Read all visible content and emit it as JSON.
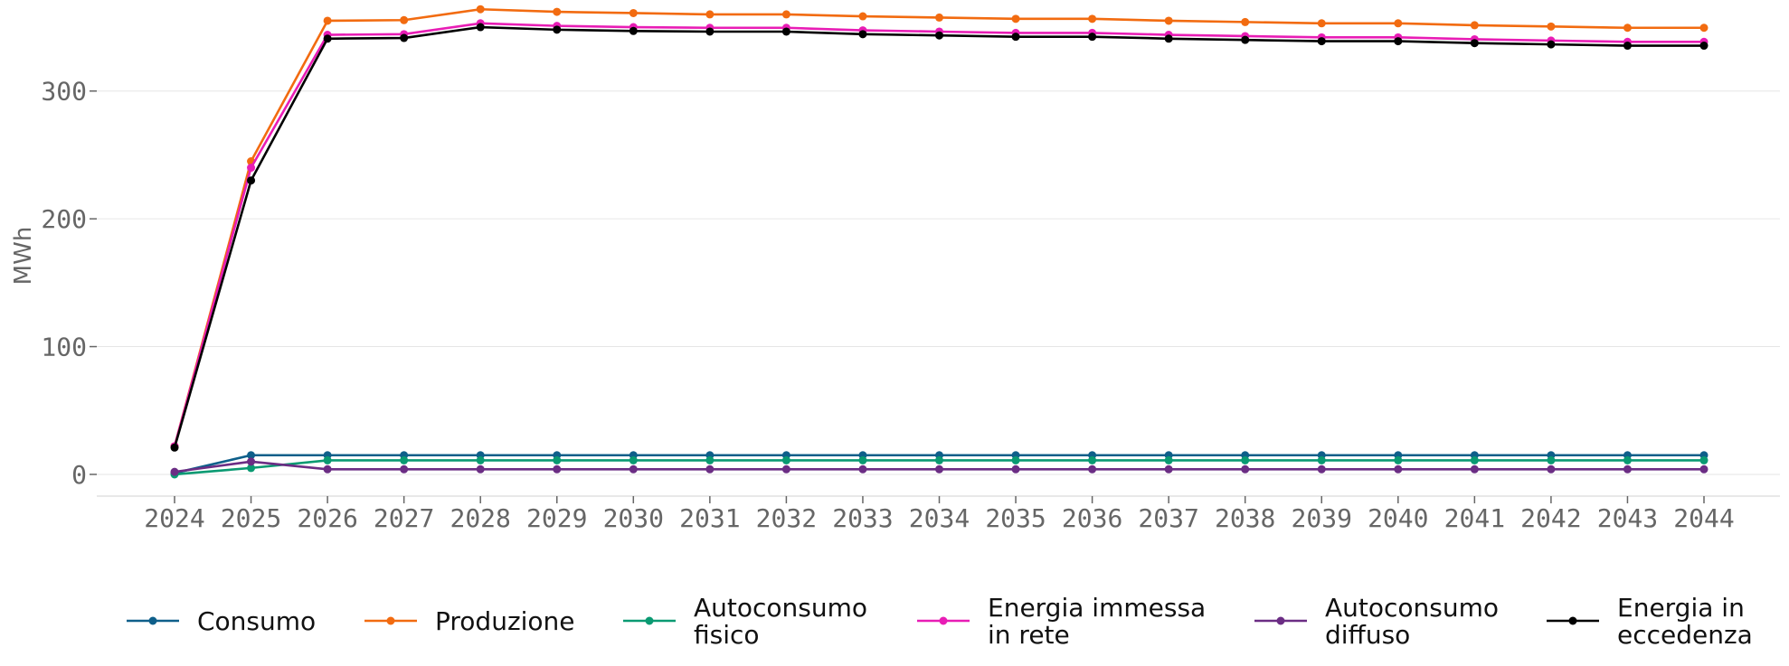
{
  "chart_data": {
    "type": "line",
    "title": "",
    "xlabel": "",
    "ylabel": "MWh",
    "x": [
      "2024",
      "2025",
      "2026",
      "2027",
      "2028",
      "2029",
      "2030",
      "2031",
      "2032",
      "2033",
      "2034",
      "2035",
      "2036",
      "2037",
      "2038",
      "2039",
      "2040",
      "2041",
      "2042",
      "2043",
      "2044"
    ],
    "yticks": [
      0,
      100,
      200,
      300
    ],
    "ylim": [
      -17,
      367
    ],
    "grid": true,
    "legend_position": "bottom",
    "series": [
      {
        "name": "Consumo",
        "color": "#0e5f8a",
        "values": [
          1,
          15,
          15,
          15,
          15,
          15,
          15,
          15,
          15,
          15,
          15,
          15,
          15,
          15,
          15,
          15,
          15,
          15,
          15,
          15,
          15
        ]
      },
      {
        "name": "Produzione",
        "color": "#f26b10",
        "values": [
          22,
          245,
          355,
          355.5,
          364,
          362,
          361,
          360,
          360,
          358.5,
          357.5,
          356.5,
          356.5,
          355,
          354,
          353,
          353,
          351.5,
          350.5,
          349.5,
          349.5
        ]
      },
      {
        "name": "Autoconsumo\nfisico",
        "color": "#0a9a72",
        "values": [
          0,
          5,
          11,
          11,
          11,
          11,
          11,
          11,
          11,
          11,
          11,
          11,
          11,
          11,
          11,
          11,
          11,
          11,
          11,
          11,
          11
        ]
      },
      {
        "name": "Energia immessa\nin rete",
        "color": "#e81db5",
        "values": [
          22,
          240,
          344,
          344.5,
          353,
          351,
          350,
          349.5,
          349.5,
          347.5,
          346.5,
          345.5,
          345.5,
          344,
          343,
          342,
          342,
          340.5,
          339.5,
          338.5,
          338.5
        ]
      },
      {
        "name": "Autoconsumo\ndiffuso",
        "color": "#6b2d84",
        "values": [
          2,
          10,
          4,
          4,
          4,
          4,
          4,
          4,
          4,
          4,
          4,
          4,
          4,
          4,
          4,
          4,
          4,
          4,
          4,
          4,
          4
        ]
      },
      {
        "name": "Energia in\neccedenza",
        "color": "#000000",
        "values": [
          21,
          230,
          341,
          341.5,
          350,
          348,
          347,
          346.5,
          346.5,
          344.5,
          343.5,
          342.5,
          342.5,
          341,
          340,
          339,
          339,
          337.5,
          336.5,
          335.5,
          335.5
        ]
      }
    ]
  }
}
